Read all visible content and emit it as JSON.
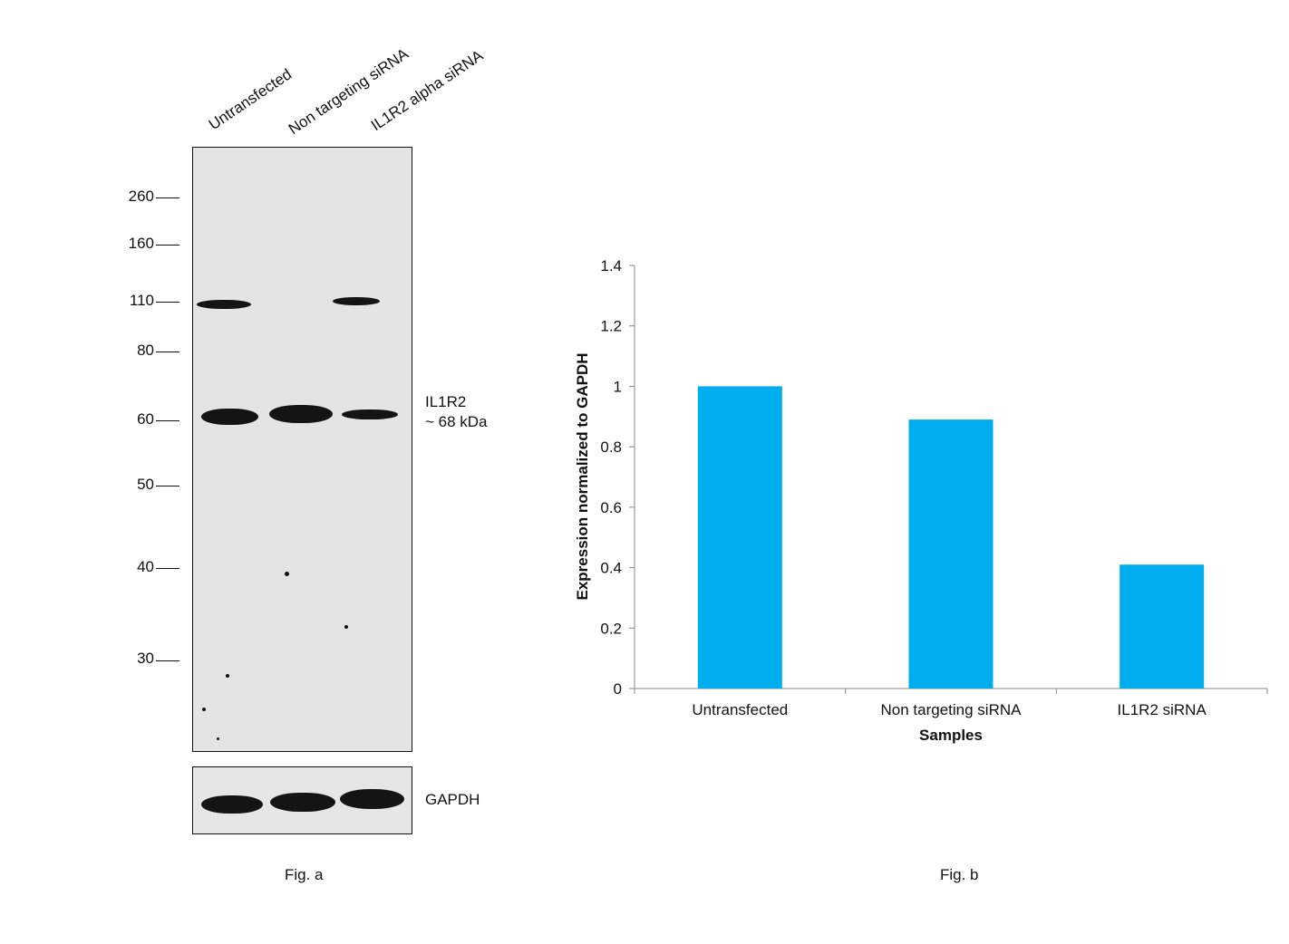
{
  "fig_a": {
    "lanes": [
      "Untransfected",
      "Non targeting siRNA",
      "IL1R2 alpha siRNA"
    ],
    "markers": [
      "260",
      "160",
      "110",
      "80",
      "60",
      "50",
      "40",
      "30"
    ],
    "band_label_line1": "IL1R2",
    "band_label_line2": "~ 68 kDa",
    "gapdh_label": "GAPDH",
    "caption": "Fig. a"
  },
  "fig_b": {
    "caption": "Fig. b"
  },
  "chart_data": {
    "type": "bar",
    "categories": [
      "Untransfected",
      "Non targeting siRNA",
      "IL1R2 siRNA"
    ],
    "values": [
      1.0,
      0.89,
      0.41
    ],
    "xlabel": "Samples",
    "ylabel": "Expression normalized to GAPDH",
    "ylim": [
      0,
      1.4
    ],
    "yticks": [
      "0",
      "0.2",
      "0.4",
      "0.6",
      "0.8",
      "1",
      "1.2",
      "1.4"
    ],
    "bar_color": "#00ADEF",
    "grid": false
  }
}
